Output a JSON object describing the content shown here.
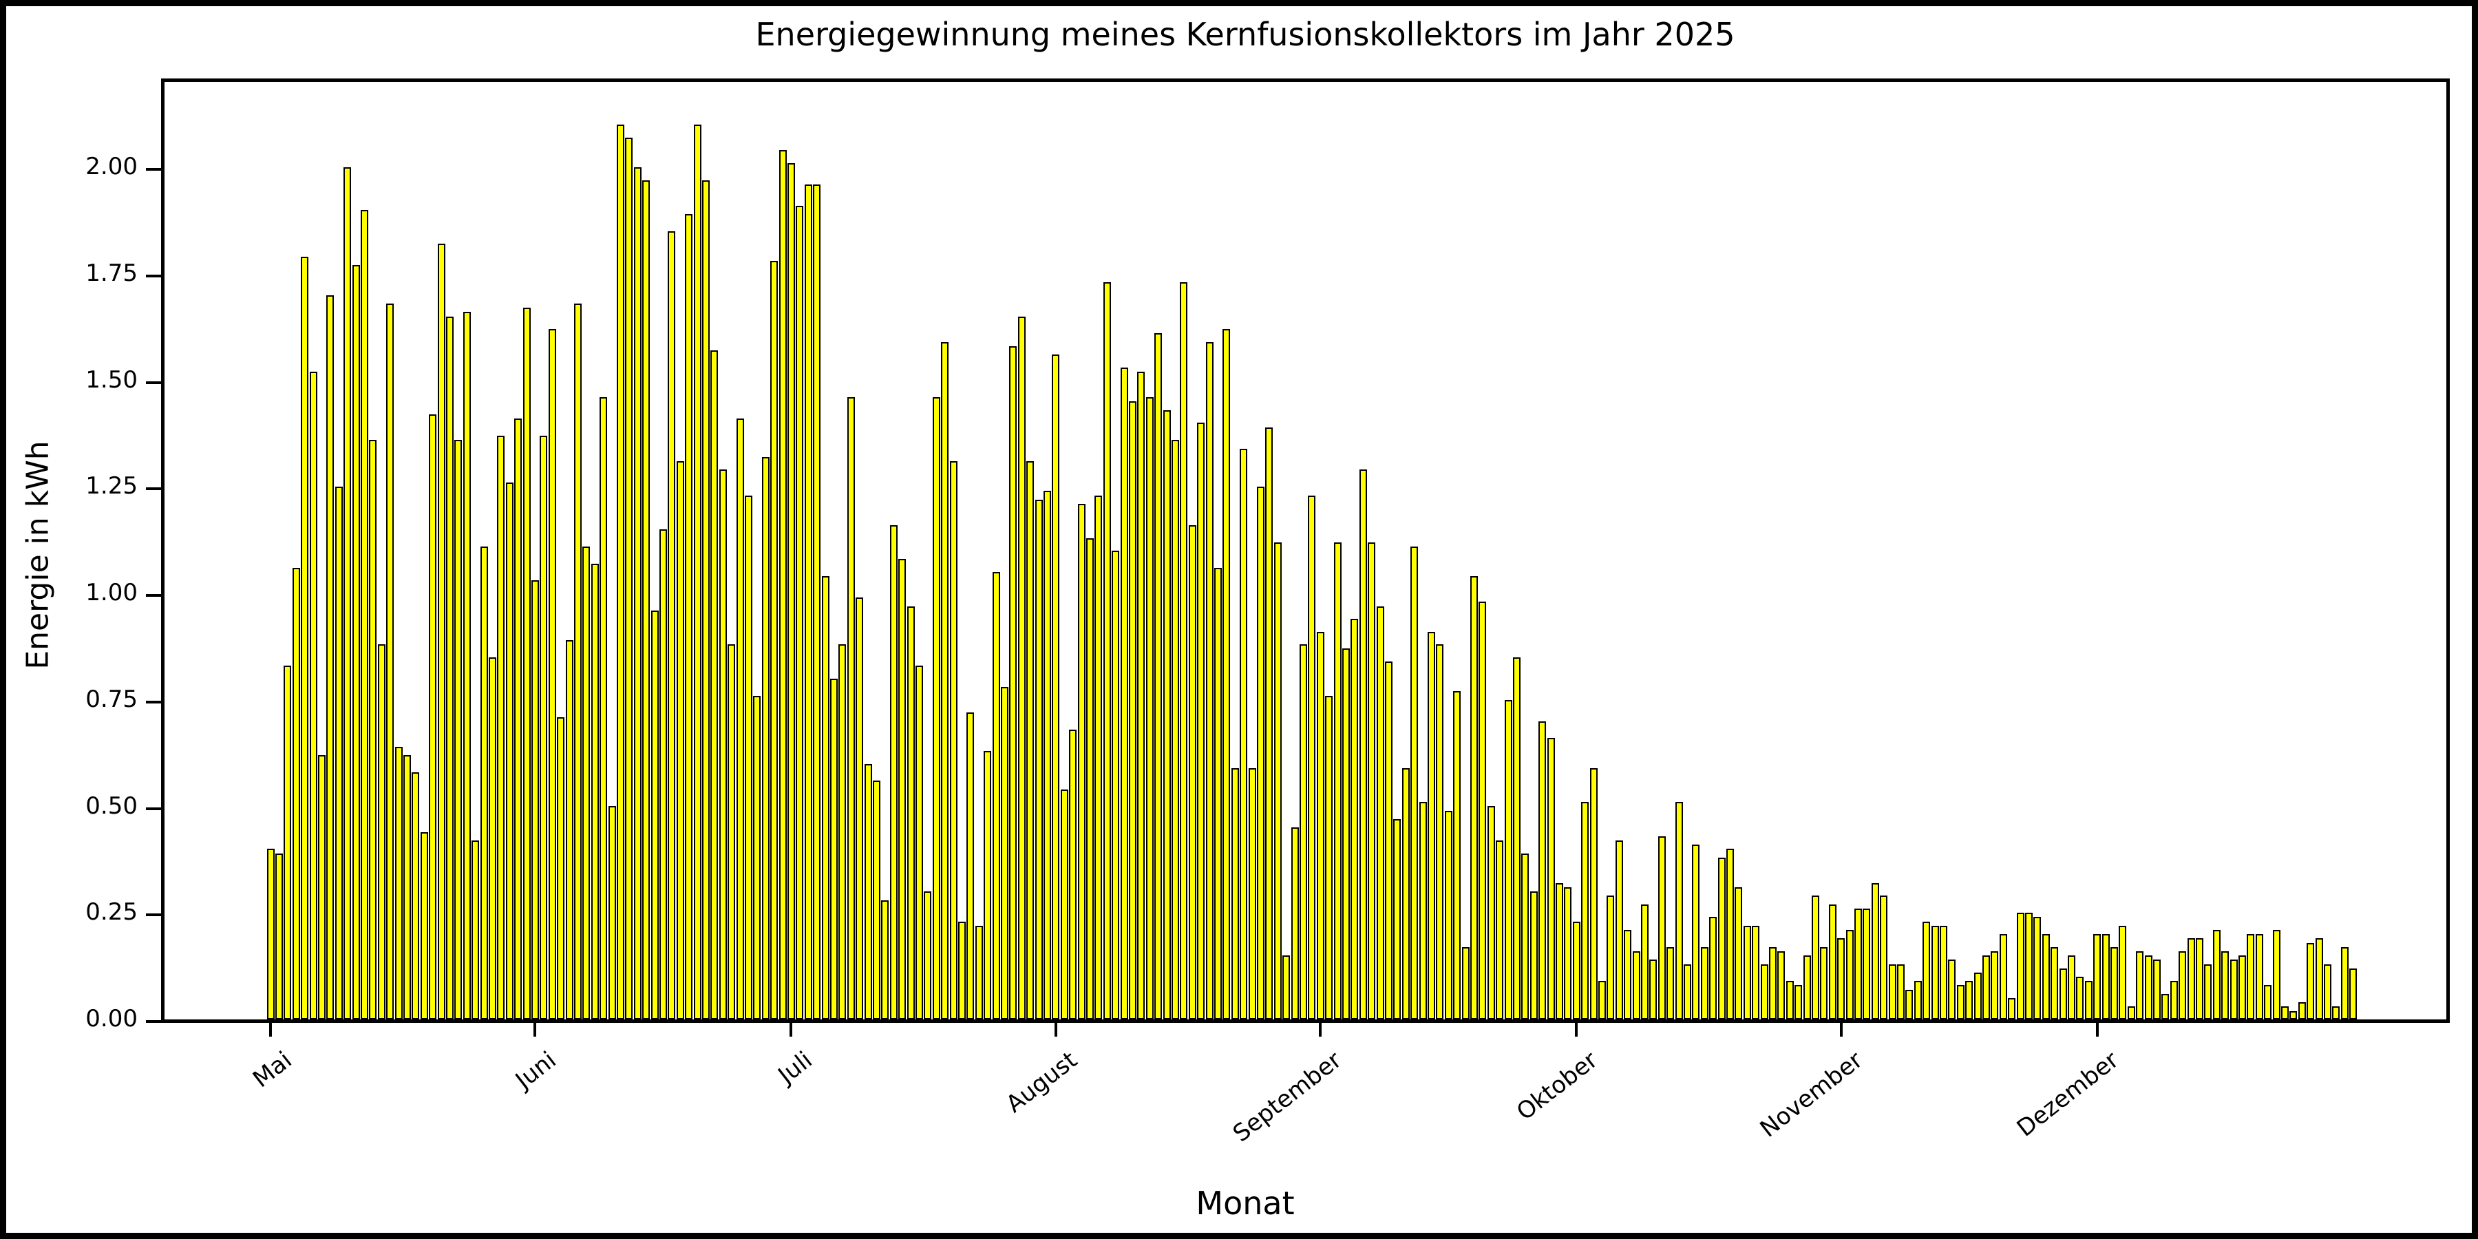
{
  "chart_data": {
    "type": "bar",
    "title": "Energiegewinnung meines Kernfusionskollektors im Jahr 2025",
    "xlabel": "Monat",
    "ylabel": "Energie in kWh",
    "bar_color": "#ffff00",
    "bar_edge_color": "#000000",
    "background_color": "#ffffff",
    "ylim": [
      0.0,
      2.22
    ],
    "grid": false,
    "y_tick_labels": [
      "0.00",
      "0.25",
      "0.50",
      "0.75",
      "1.00",
      "1.25",
      "1.50",
      "1.75",
      "2.00"
    ],
    "y_tick_values": [
      0.0,
      0.25,
      0.5,
      0.75,
      1.0,
      1.25,
      1.5,
      1.75,
      2.0
    ],
    "x_tick_labels": [
      "Mai",
      "Juni",
      "Juli",
      "August",
      "September",
      "Oktober",
      "November",
      "Dezember"
    ],
    "months": [
      {
        "name": "Mai",
        "values": [
          0.4,
          0.39,
          0.83,
          1.06,
          1.79,
          1.52,
          0.62,
          1.7,
          1.25,
          2.0,
          1.77,
          1.9,
          1.36,
          0.88,
          1.68,
          0.64,
          0.62,
          0.58,
          0.44,
          1.42,
          1.82,
          1.65,
          1.36,
          1.66,
          0.42,
          1.11,
          0.85,
          1.37,
          1.26,
          1.41,
          1.67
        ]
      },
      {
        "name": "Juni",
        "values": [
          1.03,
          1.37,
          1.62,
          0.71,
          0.89,
          1.68,
          1.11,
          1.07,
          1.46,
          0.5,
          2.1,
          2.07,
          2.0,
          1.97,
          0.96,
          1.15,
          1.85,
          1.31,
          1.89,
          2.1,
          1.97,
          1.57,
          1.29,
          0.88,
          1.41,
          1.23,
          0.76,
          1.32,
          1.78,
          2.04
        ]
      },
      {
        "name": "Juli",
        "values": [
          2.01,
          1.91,
          1.96,
          1.96,
          1.04,
          0.8,
          0.88,
          1.46,
          0.99,
          0.6,
          0.56,
          0.28,
          1.16,
          1.08,
          0.97,
          0.83,
          0.3,
          1.46,
          1.59,
          1.31,
          0.23,
          0.72,
          0.22,
          0.63,
          1.05,
          0.78,
          1.58,
          1.65,
          1.31,
          1.22,
          1.24
        ]
      },
      {
        "name": "August",
        "values": [
          1.56,
          0.54,
          0.68,
          1.21,
          1.13,
          1.23,
          1.73,
          1.1,
          1.53,
          1.45,
          1.52,
          1.46,
          1.61,
          1.43,
          1.36,
          1.73,
          1.16,
          1.4,
          1.59,
          1.06,
          1.62,
          0.59,
          1.34,
          0.59,
          1.25,
          1.39,
          1.12,
          0.15,
          0.45,
          0.88,
          1.23
        ]
      },
      {
        "name": "September",
        "values": [
          0.91,
          0.76,
          1.12,
          0.87,
          0.94,
          1.29,
          1.12,
          0.97,
          0.84,
          0.47,
          0.59,
          1.11,
          0.51,
          0.91,
          0.88,
          0.49,
          0.77,
          0.17,
          1.04,
          0.98,
          0.5,
          0.42,
          0.75,
          0.85,
          0.39,
          0.3,
          0.7,
          0.66,
          0.32,
          0.31
        ]
      },
      {
        "name": "Oktober",
        "values": [
          0.23,
          0.51,
          0.59,
          0.09,
          0.29,
          0.42,
          0.21,
          0.16,
          0.27,
          0.14,
          0.43,
          0.17,
          0.51,
          0.13,
          0.41,
          0.17,
          0.24,
          0.38,
          0.4,
          0.31,
          0.22,
          0.22,
          0.13,
          0.17,
          0.16,
          0.09,
          0.08,
          0.15,
          0.29,
          0.17,
          0.27
        ]
      },
      {
        "name": "November",
        "values": [
          0.19,
          0.21,
          0.26,
          0.26,
          0.32,
          0.29,
          0.13,
          0.13,
          0.07,
          0.09,
          0.23,
          0.22,
          0.22,
          0.14,
          0.08,
          0.09,
          0.11,
          0.15,
          0.16,
          0.2,
          0.05,
          0.25,
          0.25,
          0.24,
          0.2,
          0.17,
          0.12,
          0.15,
          0.1,
          0.09
        ]
      },
      {
        "name": "Dezember",
        "values": [
          0.2,
          0.2,
          0.17,
          0.22,
          0.03,
          0.16,
          0.15,
          0.14,
          0.06,
          0.09,
          0.16,
          0.19,
          0.19,
          0.13,
          0.21,
          0.16,
          0.14,
          0.15,
          0.2,
          0.2,
          0.08,
          0.21,
          0.03,
          0.02,
          0.04,
          0.18,
          0.19,
          0.13,
          0.03,
          0.17,
          0.12
        ]
      }
    ]
  }
}
